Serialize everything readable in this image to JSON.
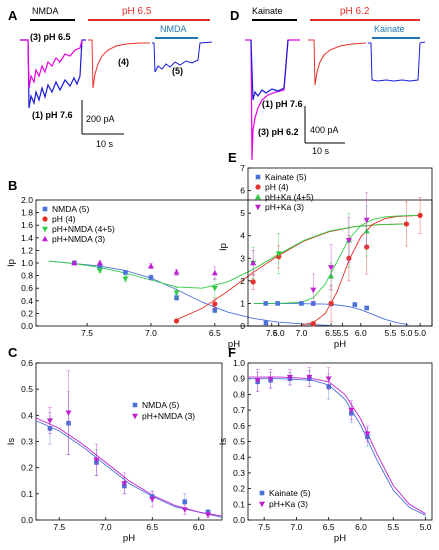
{
  "chart_data": [
    {
      "panel": "A",
      "type": "line",
      "bars": [
        {
          "label": "NMDA",
          "color": "#000000"
        },
        {
          "label": "pH 6.5",
          "color": "#e8302a"
        },
        {
          "label": "NMDA",
          "color": "#1f77b4"
        }
      ],
      "trace_labels": [
        "(3) pH 6.5",
        "(4)",
        "(5)",
        "(1) pH 7.6"
      ],
      "scalebar": {
        "y": "200 pA",
        "x": "10 s"
      }
    },
    {
      "panel": "D",
      "type": "line",
      "bars": [
        {
          "label": "Kainate",
          "color": "#000000"
        },
        {
          "label": "pH 6.2",
          "color": "#e8302a"
        },
        {
          "label": "Kainate",
          "color": "#1f77b4"
        }
      ],
      "trace_labels": [
        "(1) pH 7.6",
        "(3) pH 6.2"
      ],
      "scalebar": {
        "y": "400 pA",
        "x": "10 s"
      }
    },
    {
      "panel": "B",
      "type": "scatter",
      "xlabel": "pH",
      "ylabel": "Ip",
      "xlim": [
        7.9,
        4.8
      ],
      "ylim": [
        0,
        2.0
      ],
      "xticks": [
        7.5,
        7.0,
        6.5,
        6.0,
        5.5,
        5.0
      ],
      "yticks": [
        0.0,
        0.2,
        0.4,
        0.6,
        0.8,
        1.0,
        1.2,
        1.4,
        1.6,
        1.8,
        2.0
      ],
      "legend_position": "top-left",
      "series": [
        {
          "name": "NMDA (5)",
          "color": "#4a72d8",
          "marker": "square",
          "x": [
            7.6,
            7.4,
            7.2,
            7.0,
            6.8,
            6.5,
            6.1
          ],
          "y": [
            1.0,
            0.95,
            0.85,
            0.77,
            0.45,
            0.25,
            0.05
          ],
          "err": [
            0.01,
            0.02,
            0.02,
            0.04,
            0.05,
            0.04,
            0.02
          ]
        },
        {
          "name": "pH (4)",
          "color": "#e8302a",
          "marker": "circle",
          "x": [
            6.8,
            6.5,
            6.2,
            6.0,
            5.0
          ],
          "y": [
            0.08,
            0.35,
            0.7,
            1.1,
            1.62
          ],
          "err": [
            0.02,
            0.08,
            0.12,
            0.18,
            0.35
          ]
        },
        {
          "name": "pH+NMDA (4+5)",
          "color": "#2ecc40",
          "marker": "tri-down",
          "x": [
            7.4,
            7.2,
            6.8,
            6.5,
            6.2,
            6.0
          ],
          "y": [
            0.88,
            0.75,
            0.53,
            0.6,
            1.0,
            1.15
          ],
          "err": [
            0.03,
            0.05,
            0.08,
            0.15,
            0.25,
            0.32
          ]
        },
        {
          "name": "pH+NMDA (3)",
          "color": "#c01fd0",
          "marker": "tri-up",
          "x": [
            7.6,
            7.4,
            7.0,
            6.8,
            6.5,
            6.2
          ],
          "y": [
            1.0,
            1.0,
            0.95,
            0.85,
            0.84,
            1.0
          ],
          "err": [
            0.02,
            0.03,
            0.04,
            0.05,
            0.1,
            0.2
          ]
        }
      ],
      "fits": [
        {
          "color": "#4a72d8",
          "x": [
            7.8,
            7.6,
            7.4,
            7.2,
            7.0,
            6.8,
            6.6,
            6.4,
            6.2,
            6.0,
            5.8,
            5.6
          ],
          "y": [
            1.03,
            0.99,
            0.95,
            0.88,
            0.76,
            0.58,
            0.38,
            0.22,
            0.12,
            0.06,
            0.03,
            0.01
          ]
        },
        {
          "color": "#e8302a",
          "x": [
            6.8,
            6.6,
            6.4,
            6.2,
            6.0,
            5.8,
            5.6,
            5.4,
            5.2,
            5.0
          ],
          "y": [
            0.1,
            0.28,
            0.55,
            0.85,
            1.12,
            1.35,
            1.5,
            1.58,
            1.61,
            1.62
          ]
        },
        {
          "color": "#2ecc40",
          "x": [
            7.8,
            7.6,
            7.4,
            7.2,
            7.0,
            6.8,
            6.6,
            6.4,
            6.2,
            6.0,
            5.8,
            5.6,
            5.4,
            5.2,
            5.0
          ],
          "y": [
            1.03,
            0.99,
            0.93,
            0.84,
            0.73,
            0.62,
            0.6,
            0.7,
            0.9,
            1.14,
            1.36,
            1.51,
            1.58,
            1.61,
            1.62
          ]
        }
      ]
    },
    {
      "panel": "E",
      "type": "scatter",
      "xlabel": "pH",
      "ylabel": "Ip",
      "xlim": [
        7.9,
        4.8
      ],
      "ylim": [
        0,
        7
      ],
      "xticks": [
        7.5,
        7.0,
        6.5,
        6.0,
        5.5,
        5.0
      ],
      "yticks": [
        0,
        1,
        2,
        3,
        4,
        5,
        6,
        7
      ],
      "legend_position": "top-left",
      "series": [
        {
          "name": "Kainate (5)",
          "color": "#4a72d8",
          "marker": "square",
          "x": [
            7.6,
            7.4,
            7.0,
            6.8,
            6.5,
            6.1,
            5.9
          ],
          "y": [
            1.0,
            1.0,
            1.0,
            1.0,
            0.98,
            0.95,
            0.8
          ],
          "err": [
            0.02,
            0.03,
            0.04,
            0.05,
            0.05,
            0.06,
            0.08
          ]
        },
        {
          "name": "pH (4)",
          "color": "#e8302a",
          "marker": "circle",
          "x": [
            6.8,
            6.5,
            6.2,
            5.9,
            5.0
          ],
          "y": [
            0.1,
            1.0,
            3.0,
            3.5,
            4.9
          ],
          "err": [
            0.1,
            0.8,
            1.0,
            1.2,
            0.8
          ]
        },
        {
          "name": "pH+Ka (4+5)",
          "color": "#2ecc40",
          "marker": "tri-up",
          "x": [
            6.5,
            6.2,
            5.9
          ],
          "y": [
            2.2,
            3.8,
            4.2
          ],
          "err": [
            0.6,
            1.2,
            1.1
          ]
        },
        {
          "name": "pH+Ka (3)",
          "color": "#c01fd0",
          "marker": "tri-down",
          "x": [
            6.8,
            6.5,
            6.2,
            5.9
          ],
          "y": [
            1.6,
            2.6,
            3.8,
            4.7
          ],
          "err": [
            0.7,
            1.0,
            1.0,
            1.2
          ]
        }
      ],
      "fits": [
        {
          "color": "#4a72d8",
          "x": [
            7.8,
            7.4,
            7.0,
            6.6,
            6.4,
            6.2,
            6.0,
            5.8,
            5.6,
            5.4,
            5.2
          ],
          "y": [
            1.0,
            1.0,
            0.99,
            0.97,
            0.93,
            0.86,
            0.72,
            0.52,
            0.3,
            0.15,
            0.06
          ]
        },
        {
          "color": "#e8302a",
          "x": [
            7.0,
            6.8,
            6.6,
            6.4,
            6.2,
            6.0,
            5.8,
            5.6,
            5.4,
            5.2,
            5.0
          ],
          "y": [
            0.05,
            0.15,
            0.55,
            1.5,
            2.9,
            3.95,
            4.5,
            4.75,
            4.85,
            4.88,
            4.9
          ]
        },
        {
          "color": "#2ecc40",
          "x": [
            7.8,
            7.4,
            7.0,
            6.8,
            6.6,
            6.4,
            6.2,
            6.0,
            5.8,
            5.6,
            5.4,
            5.2,
            5.0
          ],
          "y": [
            1.0,
            1.0,
            1.05,
            1.25,
            1.85,
            2.85,
            3.85,
            4.45,
            4.72,
            4.83,
            4.87,
            4.89,
            4.9
          ]
        }
      ]
    },
    {
      "panel": "C",
      "type": "scatter",
      "xlabel": "pH",
      "ylabel": "Is",
      "xlim": [
        7.75,
        5.75
      ],
      "ylim": [
        0,
        0.6
      ],
      "xticks": [
        7.5,
        7.0,
        6.5,
        6.0
      ],
      "yticks": [
        0.0,
        0.1,
        0.2,
        0.3,
        0.4,
        0.5,
        0.6
      ],
      "legend_position": "top-right",
      "series": [
        {
          "name": "NMDA (5)",
          "color": "#4a72d8",
          "marker": "square",
          "x": [
            7.6,
            7.4,
            7.1,
            6.8,
            6.5,
            6.15,
            5.9
          ],
          "y": [
            0.35,
            0.37,
            0.22,
            0.13,
            0.09,
            0.07,
            0.03
          ],
          "err": [
            0.06,
            0.12,
            0.05,
            0.03,
            0.02,
            0.03,
            0.01
          ]
        },
        {
          "name": "pH+NMDA (3)",
          "color": "#c01fd0",
          "marker": "tri-down",
          "x": [
            7.6,
            7.4,
            7.1,
            6.8,
            6.5,
            6.15,
            5.9
          ],
          "y": [
            0.38,
            0.41,
            0.23,
            0.14,
            0.08,
            0.04,
            0.02
          ],
          "err": [
            0.05,
            0.16,
            0.06,
            0.04,
            0.03,
            0.02,
            0.01
          ]
        }
      ],
      "fits": [
        {
          "color": "#4a72d8",
          "x": [
            7.75,
            7.5,
            7.25,
            7.0,
            6.75,
            6.5,
            6.25,
            6.0,
            5.75
          ],
          "y": [
            0.38,
            0.34,
            0.28,
            0.21,
            0.14,
            0.09,
            0.05,
            0.03,
            0.01
          ]
        },
        {
          "color": "#c01fd0",
          "x": [
            7.75,
            7.5,
            7.25,
            7.0,
            6.75,
            6.5,
            6.25,
            6.0,
            5.75
          ],
          "y": [
            0.39,
            0.35,
            0.29,
            0.22,
            0.15,
            0.095,
            0.055,
            0.03,
            0.015
          ]
        }
      ]
    },
    {
      "panel": "F",
      "type": "scatter",
      "xlabel": "pH",
      "ylabel": "Is",
      "xlim": [
        7.75,
        4.9
      ],
      "ylim": [
        0,
        1.0
      ],
      "xticks": [
        7.5,
        7.0,
        6.5,
        6.0,
        5.5,
        5.0
      ],
      "yticks": [
        0.0,
        0.1,
        0.2,
        0.3,
        0.4,
        0.5,
        0.6,
        0.7,
        0.8,
        0.9,
        1.0
      ],
      "legend_position": "bottom-left",
      "series": [
        {
          "name": "Kainate (5)",
          "color": "#4a72d8",
          "marker": "square",
          "x": [
            7.6,
            7.4,
            7.1,
            6.8,
            6.5,
            6.15,
            5.9
          ],
          "y": [
            0.88,
            0.89,
            0.9,
            0.9,
            0.85,
            0.68,
            0.53
          ],
          "err": [
            0.06,
            0.05,
            0.04,
            0.05,
            0.08,
            0.06,
            0.06
          ]
        },
        {
          "name": "pH+Ka (3)",
          "color": "#c01fd0",
          "marker": "tri-down",
          "x": [
            7.6,
            7.4,
            7.1,
            6.8,
            6.5,
            6.15,
            5.9
          ],
          "y": [
            0.89,
            0.9,
            0.91,
            0.91,
            0.9,
            0.7,
            0.55
          ],
          "err": [
            0.07,
            0.06,
            0.05,
            0.06,
            0.07,
            0.06,
            0.05
          ]
        }
      ],
      "fits": [
        {
          "color": "#4a72d8",
          "x": [
            7.75,
            7.25,
            6.75,
            6.5,
            6.25,
            6.0,
            5.75,
            5.5,
            5.25,
            5.0
          ],
          "y": [
            0.9,
            0.9,
            0.89,
            0.86,
            0.77,
            0.6,
            0.38,
            0.19,
            0.08,
            0.03
          ]
        },
        {
          "color": "#c01fd0",
          "x": [
            7.75,
            7.25,
            6.75,
            6.5,
            6.25,
            6.0,
            5.75,
            5.5,
            5.25,
            5.0
          ],
          "y": [
            0.91,
            0.91,
            0.9,
            0.88,
            0.8,
            0.64,
            0.42,
            0.22,
            0.1,
            0.04
          ]
        }
      ]
    }
  ]
}
